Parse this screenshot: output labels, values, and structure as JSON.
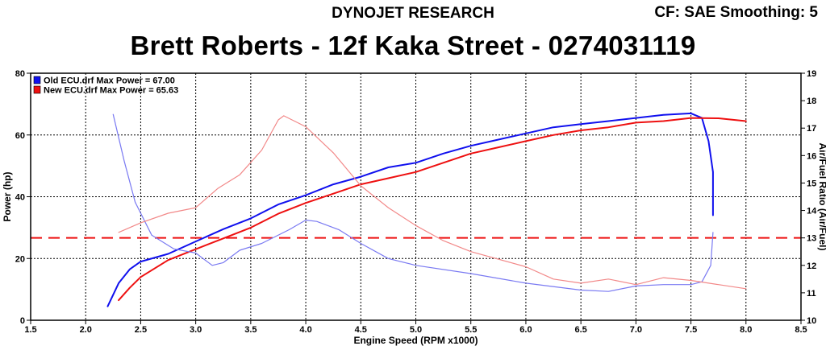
{
  "header": {
    "brand": "DYNOJET RESEARCH",
    "cf_line": "CF: SAE  Smoothing: 5",
    "title": "Brett Roberts - 12f Kaka Street - 0274031119"
  },
  "chart_data": {
    "type": "line",
    "xlabel": "Engine Speed (RPM x1000)",
    "ylabel": "Power (hp)",
    "y2label": "Air/Fuel Ratio (Air/Fuel)",
    "xlim": [
      1.5,
      8.5
    ],
    "ylim": [
      0,
      80
    ],
    "y2lim": [
      10,
      19
    ],
    "x_ticks": [
      "1.5",
      "2.0",
      "2.5",
      "3.0",
      "3.5",
      "4.0",
      "4.5",
      "5.0",
      "5.5",
      "6.0",
      "6.5",
      "7.0",
      "7.5",
      "8.0",
      "8.5"
    ],
    "y_ticks": [
      "0",
      "20",
      "40",
      "60",
      "80"
    ],
    "y2_ticks": [
      "10",
      "11",
      "12",
      "13",
      "14",
      "15",
      "16",
      "17",
      "18",
      "19"
    ],
    "grid": true,
    "legend_position": "top-left",
    "legend": [
      {
        "label": "Old ECU.drf Max Power = 67.00",
        "color": "#1010ee"
      },
      {
        "label": "New ECU.drf Max Power = 65.63",
        "color": "#ee1010"
      }
    ],
    "reference_line": {
      "axis": "y2",
      "value": 13.0,
      "color": "#ee1010",
      "style": "dashed"
    },
    "series": [
      {
        "name": "Old ECU.drf",
        "axis": "y",
        "color": "#1010ee",
        "points": [
          [
            2.2,
            4.5
          ],
          [
            2.3,
            12
          ],
          [
            2.4,
            16.5
          ],
          [
            2.5,
            19
          ],
          [
            2.75,
            21.5
          ],
          [
            3.0,
            25.5
          ],
          [
            3.25,
            29.5
          ],
          [
            3.5,
            33
          ],
          [
            3.75,
            37.5
          ],
          [
            4.0,
            40.5
          ],
          [
            4.25,
            44
          ],
          [
            4.5,
            46.5
          ],
          [
            4.75,
            49.5
          ],
          [
            5.0,
            51
          ],
          [
            5.25,
            54
          ],
          [
            5.5,
            56.5
          ],
          [
            5.75,
            58.5
          ],
          [
            6.0,
            60.5
          ],
          [
            6.25,
            62.5
          ],
          [
            6.5,
            63.5
          ],
          [
            6.75,
            64.5
          ],
          [
            7.0,
            65.5
          ],
          [
            7.25,
            66.5
          ],
          [
            7.5,
            67.0
          ],
          [
            7.6,
            65.5
          ],
          [
            7.66,
            58
          ],
          [
            7.7,
            48
          ],
          [
            7.7,
            34
          ]
        ]
      },
      {
        "name": "New ECU.drf",
        "axis": "y",
        "color": "#ee1010",
        "points": [
          [
            2.3,
            6.5
          ],
          [
            2.4,
            10.5
          ],
          [
            2.5,
            14
          ],
          [
            2.75,
            19.5
          ],
          [
            3.0,
            23
          ],
          [
            3.25,
            26.5
          ],
          [
            3.5,
            30
          ],
          [
            3.75,
            34.5
          ],
          [
            4.0,
            38
          ],
          [
            4.25,
            41
          ],
          [
            4.5,
            44
          ],
          [
            4.75,
            46
          ],
          [
            5.0,
            48
          ],
          [
            5.25,
            51
          ],
          [
            5.5,
            54
          ],
          [
            5.75,
            56
          ],
          [
            6.0,
            58
          ],
          [
            6.25,
            60
          ],
          [
            6.5,
            61.5
          ],
          [
            6.75,
            62.5
          ],
          [
            7.0,
            64
          ],
          [
            7.25,
            64.5
          ],
          [
            7.5,
            65.5
          ],
          [
            7.75,
            65.4
          ],
          [
            8.0,
            64.5
          ]
        ]
      },
      {
        "name": "Old ECU.drf AFR",
        "axis": "y2",
        "color": "#7a7af2",
        "points": [
          [
            2.25,
            17.5
          ],
          [
            2.35,
            15.8
          ],
          [
            2.45,
            14.3
          ],
          [
            2.6,
            13.1
          ],
          [
            2.8,
            12.6
          ],
          [
            3.0,
            12.45
          ],
          [
            3.15,
            12.0
          ],
          [
            3.25,
            12.1
          ],
          [
            3.4,
            12.55
          ],
          [
            3.6,
            12.8
          ],
          [
            3.85,
            13.3
          ],
          [
            4.0,
            13.65
          ],
          [
            4.1,
            13.6
          ],
          [
            4.3,
            13.3
          ],
          [
            4.5,
            12.8
          ],
          [
            4.75,
            12.25
          ],
          [
            5.0,
            12.0
          ],
          [
            5.5,
            11.7
          ],
          [
            6.0,
            11.35
          ],
          [
            6.5,
            11.1
          ],
          [
            6.75,
            11.05
          ],
          [
            7.0,
            11.25
          ],
          [
            7.25,
            11.3
          ],
          [
            7.5,
            11.3
          ],
          [
            7.6,
            11.4
          ],
          [
            7.68,
            12.0
          ],
          [
            7.7,
            13.2
          ]
        ]
      },
      {
        "name": "New ECU.drf AFR",
        "axis": "y2",
        "color": "#f28888",
        "points": [
          [
            2.3,
            13.2
          ],
          [
            2.5,
            13.55
          ],
          [
            2.75,
            13.9
          ],
          [
            3.0,
            14.1
          ],
          [
            3.2,
            14.8
          ],
          [
            3.4,
            15.3
          ],
          [
            3.6,
            16.2
          ],
          [
            3.75,
            17.3
          ],
          [
            3.8,
            17.45
          ],
          [
            4.0,
            17.05
          ],
          [
            4.25,
            16.1
          ],
          [
            4.5,
            14.9
          ],
          [
            4.75,
            14.1
          ],
          [
            5.0,
            13.45
          ],
          [
            5.25,
            12.9
          ],
          [
            5.5,
            12.5
          ],
          [
            6.0,
            11.95
          ],
          [
            6.25,
            11.5
          ],
          [
            6.5,
            11.35
          ],
          [
            6.75,
            11.5
          ],
          [
            7.0,
            11.3
          ],
          [
            7.25,
            11.55
          ],
          [
            7.5,
            11.45
          ],
          [
            7.75,
            11.3
          ],
          [
            8.0,
            11.15
          ]
        ]
      }
    ]
  }
}
